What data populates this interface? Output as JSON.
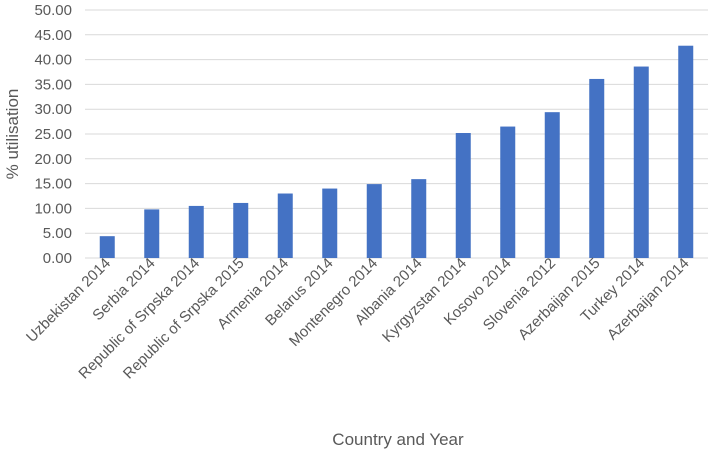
{
  "chart_data": {
    "type": "bar",
    "title": "",
    "xlabel": "Country and Year",
    "ylabel": "% utilisation",
    "categories": [
      "Uzbekistan 2014",
      "Serbia 2014",
      "Republic of Srpska 2014",
      "Republic of Srpska 2015",
      "Armenia 2014",
      "Belarus 2014",
      "Montenegro 2014",
      "Albania 2014",
      "Kyrgyzstan 2014",
      "Kosovo 2014",
      "Slovenia 2012",
      "Azerbaijan 2015",
      "Turkey 2014",
      "Azerbaijan 2014"
    ],
    "values": [
      4.4,
      9.8,
      10.5,
      11.1,
      13.0,
      14.0,
      14.9,
      15.9,
      25.2,
      26.5,
      29.4,
      36.1,
      38.6,
      42.8
    ],
    "ylim": [
      0,
      50
    ],
    "yticks": [
      "0.00",
      "5.00",
      "10.00",
      "15.00",
      "20.00",
      "25.00",
      "30.00",
      "35.00",
      "40.00",
      "45.00",
      "50.00"
    ],
    "grid": true,
    "legend": "none",
    "bar_color": "#4472C4",
    "grid_color": "#D9D9D9"
  }
}
